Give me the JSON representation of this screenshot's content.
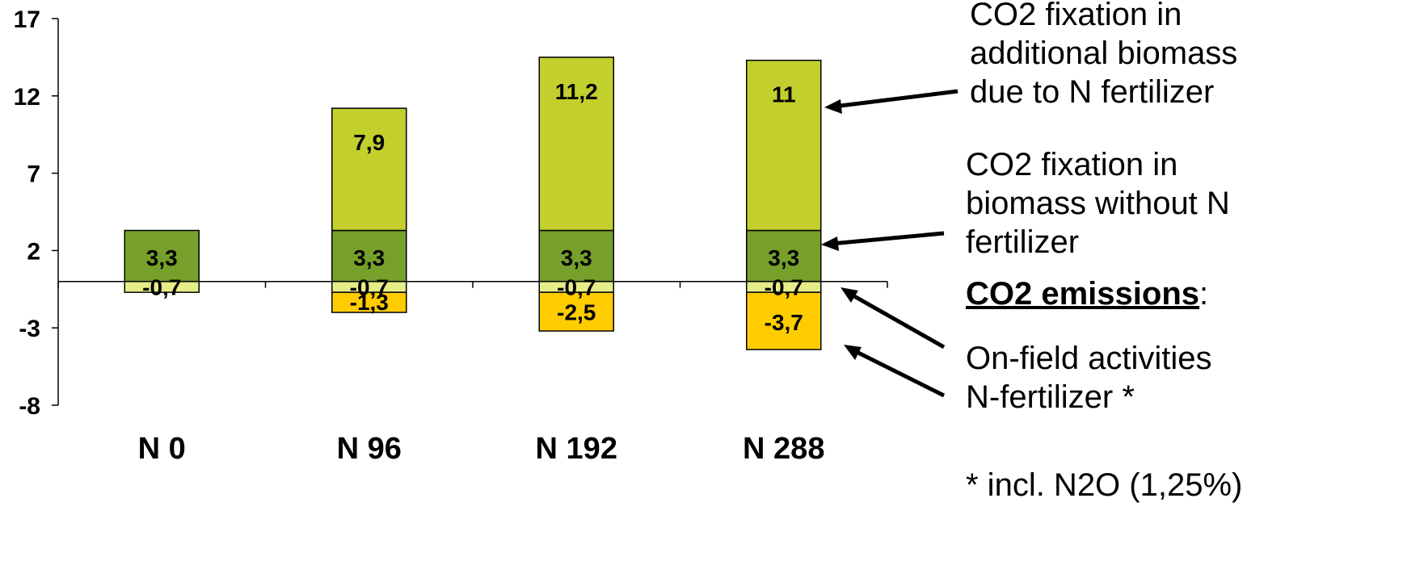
{
  "chart_data": {
    "type": "bar",
    "stacked": true,
    "categories": [
      "N 0",
      "N 96",
      "N 192",
      "N 288"
    ],
    "ylim": [
      -8,
      17
    ],
    "yticks": [
      "17",
      "12",
      "7",
      "2",
      "-3",
      "-8"
    ],
    "series": [
      {
        "values": [
          3.3,
          3.3,
          3.3,
          3.3
        ],
        "labels": [
          "3,3",
          "3,3",
          "3,3",
          "3,3"
        ],
        "color": "#77A02A",
        "sign": "positive"
      },
      {
        "values": [
          0,
          7.9,
          11.2,
          11
        ],
        "labels": [
          "",
          "7,9",
          "11,2",
          "11"
        ],
        "color": "#C2CF2C",
        "sign": "positive"
      },
      {
        "values": [
          -0.7,
          -0.7,
          -0.7,
          -0.7
        ],
        "labels": [
          "-0,7",
          "-0,7",
          "-0,7",
          "-0,7"
        ],
        "color": "#E6EC88",
        "sign": "negative"
      },
      {
        "values": [
          0,
          -1.3,
          -2.5,
          -3.7
        ],
        "labels": [
          "",
          "-1,3",
          "-2,5",
          "-3,7"
        ],
        "color": "#FFCC00",
        "sign": "negative"
      }
    ]
  },
  "annotations": {
    "additional_biomass": [
      "CO2 fixation in",
      "additional biomass",
      "due to N fertilizer"
    ],
    "biomass_without_n": [
      "CO2 fixation in",
      "biomass without N",
      "fertilizer"
    ],
    "emissions_heading": "CO2 emissions",
    "emissions_colon": ":",
    "on_field": "On-field activities",
    "n_fertilizer": "N-fertilizer *",
    "footnote": "* incl. N2O (1,25%)"
  }
}
